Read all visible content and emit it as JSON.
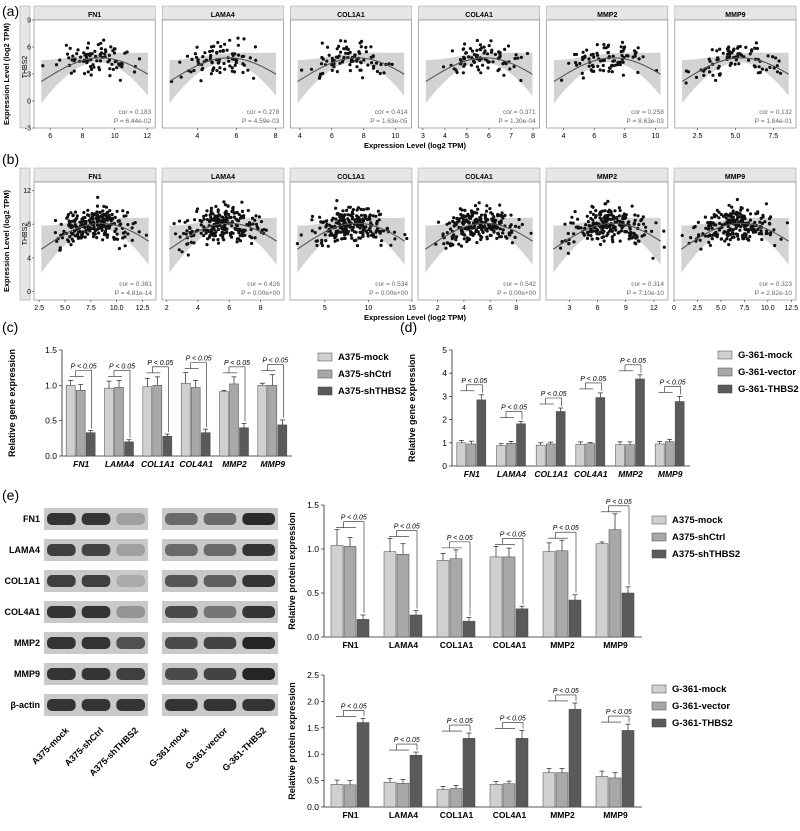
{
  "panel_labels": {
    "a": "(a)",
    "b": "(b)",
    "c": "(c)",
    "d": "(d)",
    "e": "(e)"
  },
  "colors": {
    "bar1": "#d0d0d0",
    "bar2": "#a8a8a8",
    "bar3": "#5a5a5a",
    "point": "#111111",
    "band": "#c8c8c8",
    "strip": "#e6e6e6",
    "curve": "#555555"
  },
  "chart_data": [
    {
      "type": "scatter",
      "panel": "a",
      "ylabel": "Expression Level (log2 TPM)",
      "y_strip": "THBS2",
      "xlabel": "Expression Level (log2 TPM)",
      "y_ticks": [
        "-3",
        "0",
        "3",
        "6",
        "9"
      ],
      "ylim": [
        -3,
        9
      ],
      "facets": [
        {
          "gene": "FN1",
          "cor": "cor = 0.183",
          "p": "P = 6.44e-02",
          "x_ticks": [
            "6",
            "8",
            "10",
            "12"
          ],
          "xlim": [
            5,
            12.5
          ]
        },
        {
          "gene": "LAMA4",
          "cor": "cor = 0.278",
          "p": "P = 4.59e-03",
          "x_ticks": [
            "4",
            "6",
            "8"
          ],
          "xlim": [
            2.2,
            8.4
          ]
        },
        {
          "gene": "COL1A1",
          "cor": "cor = 0.414",
          "p": "P = 1.63e-05",
          "x_ticks": [
            "4",
            "6",
            "8",
            "10"
          ],
          "xlim": [
            3.4,
            11
          ]
        },
        {
          "gene": "COL4A1",
          "cor": "cor = 0.371",
          "p": "P = 1.30e-04",
          "x_ticks": [
            "3",
            "4",
            "5",
            "6",
            "7",
            "8"
          ],
          "xlim": [
            2.8,
            8.3
          ]
        },
        {
          "gene": "MMP2",
          "cor": "cor = 0.258",
          "p": "P = 8.63e-03",
          "x_ticks": [
            "4",
            "6",
            "8",
            "10"
          ],
          "xlim": [
            2.9,
            10.8
          ]
        },
        {
          "gene": "MMP9",
          "cor": "cor = 0.132",
          "p": "P = 1.84e-01",
          "x_ticks": [
            "2.5",
            "5.0",
            "7.5"
          ],
          "xlim": [
            1,
            9
          ]
        }
      ]
    },
    {
      "type": "scatter",
      "panel": "b",
      "ylabel": "Expression Level (log2 TPM)",
      "y_strip": "THBS2",
      "xlabel": "Expression Level (log2 TPM)",
      "y_ticks": [
        "0",
        "4",
        "8",
        "12"
      ],
      "ylim": [
        -1,
        13
      ],
      "facets": [
        {
          "gene": "FN1",
          "cor": "cor = 0.381",
          "p": "P = 4.81e-14",
          "x_ticks": [
            "2.5",
            "5.0",
            "7.5",
            "10.0",
            "12.5"
          ],
          "xlim": [
            2,
            13.8
          ]
        },
        {
          "gene": "LAMA4",
          "cor": "cor = 0.426",
          "p": "P = 0.00e+00",
          "x_ticks": [
            "2",
            "4",
            "6",
            "8"
          ],
          "xlim": [
            1.7,
            9.5
          ]
        },
        {
          "gene": "COL1A1",
          "cor": "cor = 0.534",
          "p": "P = 0.00e+00",
          "x_ticks": [
            "5",
            "10",
            "15"
          ],
          "xlim": [
            1,
            15
          ]
        },
        {
          "gene": "COL4A1",
          "cor": "cor = 0.542",
          "p": "P = 0.00e+00",
          "x_ticks": [
            "2",
            "4",
            "6",
            "8"
          ],
          "xlim": [
            0.5,
            9.8
          ]
        },
        {
          "gene": "MMP2",
          "cor": "cor = 0.314",
          "p": "P = 7.10e-10",
          "x_ticks": [
            "3",
            "6",
            "9",
            "12"
          ],
          "xlim": [
            0.5,
            13.5
          ]
        },
        {
          "gene": "MMP9",
          "cor": "cor = 0.323",
          "p": "P = 2.82e-10",
          "x_ticks": [
            "0",
            "2.5",
            "5.0",
            "7.5",
            "10.0",
            "12.5"
          ],
          "xlim": [
            0,
            13
          ]
        }
      ]
    },
    {
      "type": "bar",
      "panel": "c",
      "ylabel": "Relative gene expression",
      "y_ticks": [
        "0.0",
        "0.5",
        "1.0",
        "1.5"
      ],
      "ylim": [
        0,
        1.5
      ],
      "categories": [
        "FN1",
        "LAMA4",
        "COL1A1",
        "COL4A1",
        "MMP2",
        "MMP9"
      ],
      "series": [
        {
          "name": "A375-mock",
          "values": [
            1.0,
            0.96,
            0.98,
            1.03,
            0.91,
            1.0
          ],
          "errors": [
            0.07,
            0.1,
            0.12,
            0.15,
            0.02,
            0.03
          ]
        },
        {
          "name": "A375-shCtrl",
          "values": [
            0.93,
            0.97,
            1.0,
            0.97,
            1.02,
            1.0
          ],
          "errors": [
            0.08,
            0.1,
            0.12,
            0.1,
            0.1,
            0.15
          ]
        },
        {
          "name": "A375-shTHBS2",
          "values": [
            0.33,
            0.2,
            0.28,
            0.33,
            0.4,
            0.44
          ],
          "errors": [
            0.03,
            0.03,
            0.03,
            0.05,
            0.06,
            0.07
          ]
        }
      ],
      "annotation": "P < 0.05"
    },
    {
      "type": "bar",
      "panel": "d",
      "ylabel": "Relative gene expression",
      "y_ticks": [
        "0",
        "1",
        "2",
        "3",
        "4",
        "5"
      ],
      "ylim": [
        0,
        5
      ],
      "categories": [
        "FN1",
        "LAMA4",
        "COL1A1",
        "COL4A1",
        "MMP2",
        "MMP9"
      ],
      "series": [
        {
          "name": "G-361-mock",
          "values": [
            1.0,
            0.88,
            0.9,
            0.94,
            0.92,
            0.95
          ],
          "errors": [
            0.1,
            0.08,
            0.1,
            0.1,
            0.12,
            0.1
          ]
        },
        {
          "name": "G-361-vector",
          "values": [
            0.95,
            0.98,
            0.95,
            0.96,
            0.92,
            1.05
          ],
          "errors": [
            0.12,
            0.08,
            0.08,
            0.05,
            0.12,
            0.1
          ]
        },
        {
          "name": "G-361-THBS2",
          "values": [
            2.85,
            1.82,
            2.35,
            2.95,
            3.75,
            2.78
          ],
          "errors": [
            0.22,
            0.1,
            0.15,
            0.2,
            0.18,
            0.22
          ]
        }
      ],
      "annotation": "P < 0.05"
    },
    {
      "type": "bar",
      "panel": "e-top",
      "ylabel": "Relative protein expression",
      "y_ticks": [
        "0.0",
        "0.5",
        "1.0",
        "1.5"
      ],
      "ylim": [
        0,
        1.5
      ],
      "categories": [
        "FN1",
        "LAMA4",
        "COL1A1",
        "COL4A1",
        "MMP2",
        "MMP9"
      ],
      "series": [
        {
          "name": "A375-mock",
          "values": [
            1.04,
            0.97,
            0.87,
            0.91,
            0.97,
            1.06
          ],
          "errors": [
            0.18,
            0.15,
            0.08,
            0.12,
            0.1,
            0.02
          ]
        },
        {
          "name": "A375-shCtrl",
          "values": [
            1.03,
            0.94,
            0.89,
            0.91,
            0.98,
            1.22
          ],
          "errors": [
            0.1,
            0.12,
            0.1,
            0.1,
            0.12,
            0.18
          ]
        },
        {
          "name": "A375-shTHBS2",
          "values": [
            0.2,
            0.25,
            0.18,
            0.32,
            0.42,
            0.5
          ],
          "errors": [
            0.05,
            0.05,
            0.04,
            0.03,
            0.06,
            0.07
          ]
        }
      ],
      "annotation": "P < 0.05"
    },
    {
      "type": "bar",
      "panel": "e-bottom",
      "ylabel": "Relative protein expression",
      "y_ticks": [
        "0.0",
        "0.5",
        "1.0",
        "1.5",
        "2.0",
        "2.5"
      ],
      "ylim": [
        0,
        2.5
      ],
      "categories": [
        "FN1",
        "LAMA4",
        "COL1A1",
        "COL4A1",
        "MMP2",
        "MMP9"
      ],
      "series": [
        {
          "name": "G-361-mock",
          "values": [
            0.43,
            0.47,
            0.33,
            0.43,
            0.65,
            0.58
          ],
          "errors": [
            0.08,
            0.07,
            0.06,
            0.05,
            0.08,
            0.1
          ]
        },
        {
          "name": "G-361-vector",
          "values": [
            0.42,
            0.45,
            0.35,
            0.44,
            0.65,
            0.55
          ],
          "errors": [
            0.08,
            0.07,
            0.06,
            0.05,
            0.08,
            0.1
          ]
        },
        {
          "name": "G-361-THBS2",
          "values": [
            1.6,
            0.98,
            1.3,
            1.3,
            1.85,
            1.45
          ],
          "errors": [
            0.08,
            0.06,
            0.1,
            0.15,
            0.12,
            0.12
          ]
        }
      ],
      "annotation": "P < 0.05"
    }
  ],
  "western_blot": {
    "rows": [
      "FN1",
      "LAMA4",
      "COL1A1",
      "COL4A1",
      "MMP2",
      "MMP9",
      "β-actin"
    ],
    "left_lanes": [
      "A375-mock",
      "A375-shCtrl",
      "A375-shTHBS2"
    ],
    "right_lanes": [
      "G-361-mock",
      "G-361-vector",
      "G-361-THBS2"
    ],
    "left_intensity": [
      [
        0.85,
        0.85,
        0.35
      ],
      [
        0.8,
        0.78,
        0.35
      ],
      [
        0.8,
        0.8,
        0.3
      ],
      [
        0.85,
        0.85,
        0.4
      ],
      [
        0.85,
        0.85,
        0.72
      ],
      [
        0.85,
        0.85,
        0.8
      ],
      [
        0.85,
        0.85,
        0.85
      ]
    ],
    "right_intensity": [
      [
        0.6,
        0.6,
        0.9
      ],
      [
        0.6,
        0.6,
        0.85
      ],
      [
        0.7,
        0.65,
        0.85
      ],
      [
        0.75,
        0.55,
        0.85
      ],
      [
        0.75,
        0.78,
        0.92
      ],
      [
        0.75,
        0.78,
        0.92
      ],
      [
        0.85,
        0.85,
        0.85
      ]
    ]
  }
}
